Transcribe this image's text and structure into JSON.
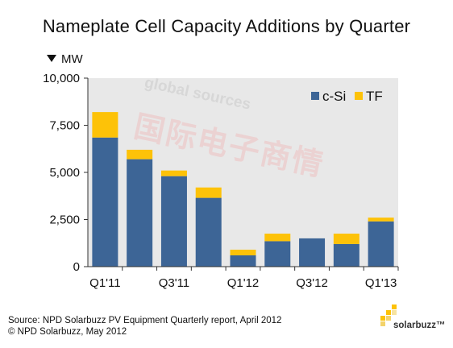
{
  "chart_data": {
    "type": "bar",
    "stacked": true,
    "title": "Nameplate Cell Capacity Additions by Quarter",
    "unit_label": "MW",
    "categories": [
      "Q1'11",
      "Q2'11",
      "Q3'11",
      "Q4'11",
      "Q1'12",
      "Q2'12",
      "Q3'12",
      "Q4'12",
      "Q1'13"
    ],
    "tick_labels": [
      "Q1'11",
      "",
      "Q3'11",
      "",
      "Q1'12",
      "",
      "Q3'12",
      "",
      "Q1'13"
    ],
    "y_ticks": [
      "0",
      "2,500",
      "5,000",
      "7,500",
      "10,000"
    ],
    "y_tick_values": [
      0,
      2500,
      5000,
      7500,
      10000
    ],
    "ylim": [
      0,
      10000
    ],
    "series": [
      {
        "name": "c-Si",
        "color": "#3d6596",
        "values": [
          6850,
          5700,
          4800,
          3650,
          600,
          1350,
          1500,
          1200,
          2400
        ]
      },
      {
        "name": "TF",
        "color": "#fdc208",
        "values": [
          1350,
          500,
          300,
          550,
          300,
          400,
          0,
          550,
          200
        ]
      }
    ],
    "legend_position": "top-right",
    "plot_background": "#e8e8e8"
  },
  "footer": {
    "source": "Source: NPD Solarbuzz PV Equipment Quarterly report, April 2012",
    "copyright": "© NPD Solarbuzz, May 2012",
    "logo": "solarbuzz™"
  },
  "watermark": {
    "line1": "global sources",
    "line2": "国际电子商情"
  }
}
